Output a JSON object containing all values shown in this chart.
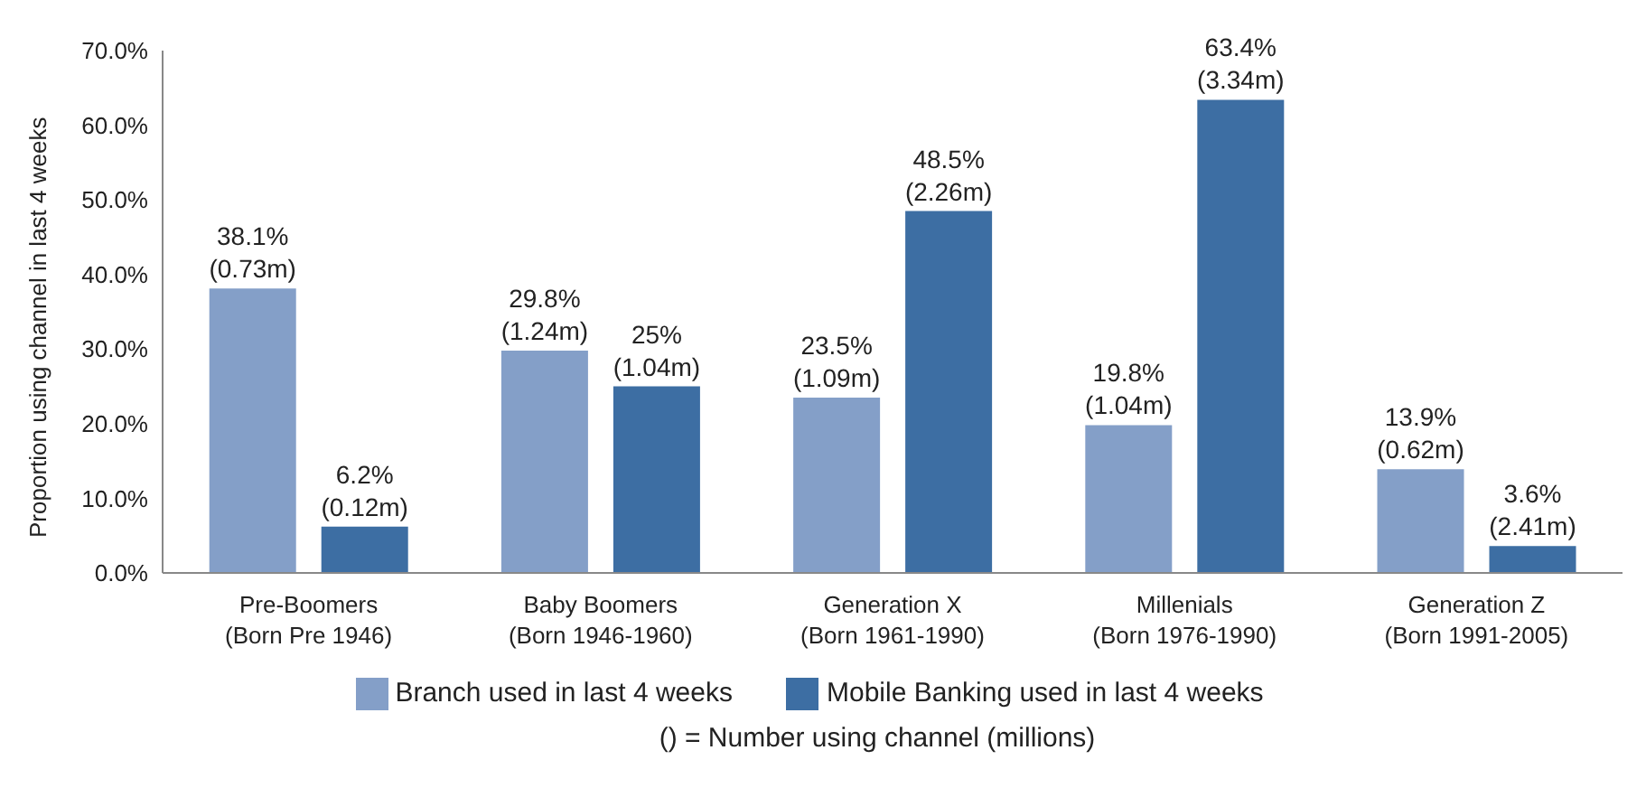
{
  "chart_data": {
    "type": "bar",
    "ylabel": "Proportion using channel in last 4 weeks",
    "categories": [
      "Pre-Boomers (Born Pre 1946)",
      "Baby Boomers (Born 1946-1960)",
      "Generation X (Born 1961-1990)",
      "Millenials (Born 1976-1990)",
      "Generation Z (Born 1991-2005)"
    ],
    "series": [
      {
        "name": "Branch used in last 4 weeks",
        "color": "#849fc8",
        "values": [
          38.1,
          29.8,
          23.5,
          19.8,
          13.9
        ],
        "value_labels": [
          "38.1% (0.73m)",
          "29.8% (1.24m)",
          "23.5% (1.09m)",
          "19.8% (1.04m)",
          "13.9% (0.62m)"
        ]
      },
      {
        "name": "Mobile Banking used in last 4 weeks",
        "color": "#3d6ea3",
        "values": [
          6.2,
          25,
          48.5,
          63.4,
          3.6
        ],
        "value_labels": [
          "6.2% (0.12m)",
          "25% (1.04m)",
          "48.5% (2.26m)",
          "63.4% (3.34m)",
          "3.6% (2.41m)"
        ]
      }
    ],
    "ylim": [
      0,
      70
    ],
    "yticks": [
      {
        "value": 0,
        "label": "0.0%"
      },
      {
        "value": 10,
        "label": "10.0%"
      },
      {
        "value": 20,
        "label": "20.0%"
      },
      {
        "value": 30,
        "label": "30.0%"
      },
      {
        "value": 40,
        "label": "40.0%"
      },
      {
        "value": 50,
        "label": "50.0%"
      },
      {
        "value": 60,
        "label": "60.0%"
      },
      {
        "value": 70,
        "label": "70.0%"
      }
    ],
    "grid": false,
    "legend": "bottom",
    "annotations": [
      "() = Number using channel (millions)"
    ]
  }
}
